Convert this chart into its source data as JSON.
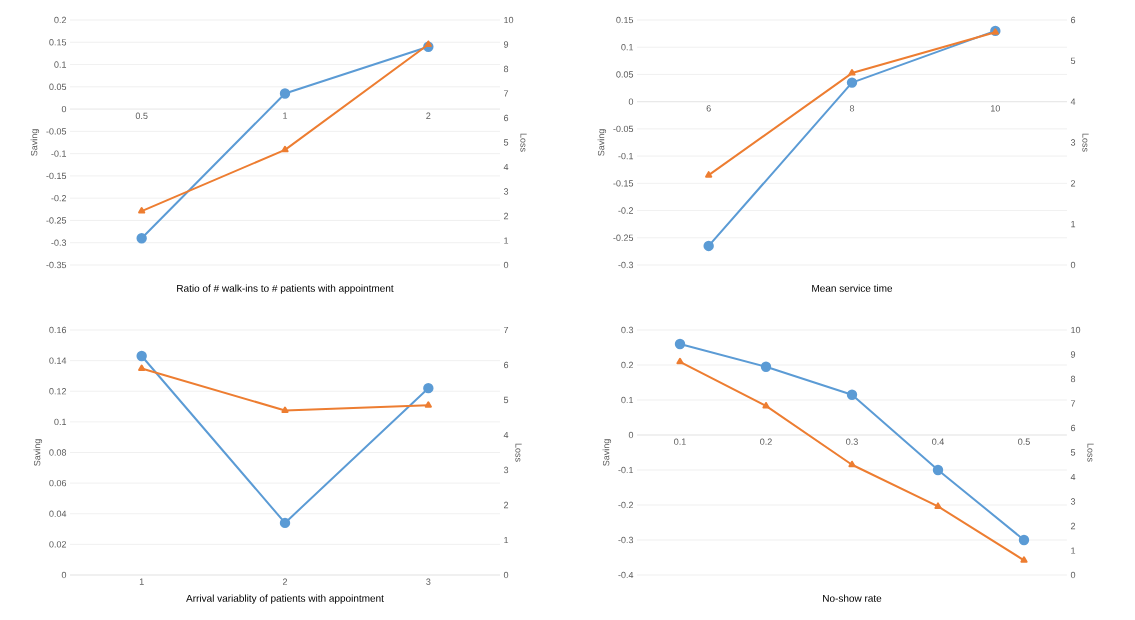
{
  "chart_data": [
    {
      "type": "line",
      "xlabel": "Ratio of # walk-ins to # patients with appointment",
      "ylabel": "Saving",
      "y2label": "Loss",
      "categories": [
        "0.5",
        "1",
        "2"
      ],
      "series": [
        {
          "color": "#5b9bd5",
          "marker": "circle",
          "values": [
            -0.29,
            0.035,
            0.14
          ]
        },
        {
          "color": "#ed7d31",
          "marker": "triangle",
          "axis": "y2",
          "values": [
            2.2,
            4.7,
            9.0
          ]
        }
      ],
      "ylim": [
        -0.35,
        0.2
      ],
      "yticks": [
        -0.35,
        -0.3,
        -0.25,
        -0.2,
        -0.15,
        -0.1,
        -0.05,
        0,
        0.05,
        0.1,
        0.15,
        0.2
      ],
      "y2lim": [
        0,
        10
      ],
      "y2ticks": [
        0,
        1,
        2,
        3,
        4,
        5,
        6,
        7,
        8,
        9,
        10
      ],
      "grid": "y"
    },
    {
      "type": "line",
      "xlabel": "Mean service time",
      "ylabel": "Saving",
      "y2label": "Loss",
      "categories": [
        "6",
        "8",
        "10"
      ],
      "series": [
        {
          "color": "#5b9bd5",
          "marker": "circle",
          "values": [
            -0.265,
            0.035,
            0.13
          ]
        },
        {
          "color": "#ed7d31",
          "marker": "triangle",
          "axis": "y2",
          "values": [
            2.2,
            4.7,
            5.7
          ]
        }
      ],
      "ylim": [
        -0.3,
        0.15
      ],
      "yticks": [
        -0.3,
        -0.25,
        -0.2,
        -0.15,
        -0.1,
        -0.05,
        0,
        0.05,
        0.1,
        0.15
      ],
      "y2lim": [
        0,
        6
      ],
      "y2ticks": [
        0,
        1,
        2,
        3,
        4,
        5,
        6
      ],
      "grid": "y"
    },
    {
      "type": "line",
      "xlabel": "Arrival variablity of patients with appointment",
      "ylabel": "Saving",
      "y2label": "Loss",
      "categories": [
        "1",
        "2",
        "3"
      ],
      "series": [
        {
          "color": "#5b9bd5",
          "marker": "circle",
          "values": [
            0.143,
            0.034,
            0.122
          ]
        },
        {
          "color": "#ed7d31",
          "marker": "triangle",
          "axis": "y2",
          "values": [
            5.9,
            4.7,
            4.85
          ]
        }
      ],
      "ylim": [
        0,
        0.16
      ],
      "yticks": [
        0,
        0.02,
        0.04,
        0.06,
        0.08,
        0.1,
        0.12,
        0.14,
        0.16
      ],
      "y2lim": [
        0,
        7
      ],
      "y2ticks": [
        0,
        1,
        2,
        3,
        4,
        5,
        6,
        7
      ],
      "grid": "y"
    },
    {
      "type": "line",
      "xlabel": "No-show rate",
      "ylabel": "Saving",
      "y2label": "Loss",
      "categories": [
        "0.1",
        "0.2",
        "0.3",
        "0.4",
        "0.5"
      ],
      "series": [
        {
          "color": "#5b9bd5",
          "marker": "circle",
          "values": [
            0.26,
            0.195,
            0.115,
            -0.1,
            -0.3
          ]
        },
        {
          "color": "#ed7d31",
          "marker": "triangle",
          "axis": "y2",
          "values": [
            8.7,
            6.9,
            4.5,
            2.8,
            0.6
          ]
        }
      ],
      "ylim": [
        -0.4,
        0.3
      ],
      "yticks": [
        -0.4,
        -0.3,
        -0.2,
        -0.1,
        0,
        0.1,
        0.2,
        0.3
      ],
      "y2lim": [
        0,
        10
      ],
      "y2ticks": [
        0,
        1,
        2,
        3,
        4,
        5,
        6,
        7,
        8,
        9,
        10
      ],
      "grid": "y"
    }
  ]
}
